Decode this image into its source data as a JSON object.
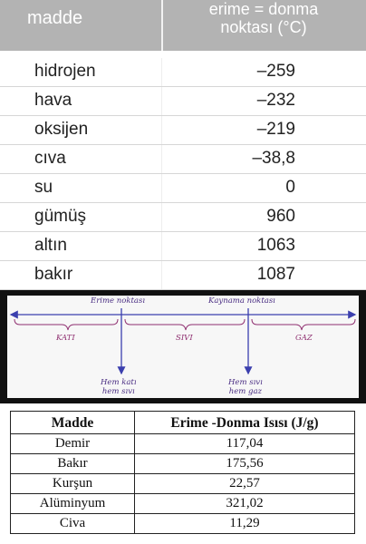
{
  "table1": {
    "header": {
      "col1": "madde",
      "col2": "erime = donma\nnoktası (°C)"
    },
    "rows": [
      {
        "name": "hidrojen",
        "value": "–259"
      },
      {
        "name": "hava",
        "value": "–232"
      },
      {
        "name": "oksijen",
        "value": "–219"
      },
      {
        "name": "cıva",
        "value": "–38,8"
      },
      {
        "name": "su",
        "value": "0"
      },
      {
        "name": "gümüş",
        "value": "960"
      },
      {
        "name": "altın",
        "value": "1063"
      },
      {
        "name": "bakır",
        "value": "1087"
      }
    ]
  },
  "diagram": {
    "point1": "Erime noktası",
    "point2": "Kaynama noktası",
    "phases": [
      "KATI",
      "SIVI",
      "GAZ"
    ],
    "below1": "Hem katı\nhem sıvı",
    "below2": "Hem sıvı\nhem gaz",
    "colors": {
      "line": "#3b3fae",
      "text": "#4a2e83",
      "phase": "#8f2f70"
    }
  },
  "table2": {
    "headers": [
      "Madde",
      "Erime -Donma Isısı (J/g)"
    ],
    "rows": [
      [
        "Demir",
        "117,04"
      ],
      [
        "Bakır",
        "175,56"
      ],
      [
        "Kurşun",
        "22,57"
      ],
      [
        "Alüminyum",
        "321,02"
      ],
      [
        "Civa",
        "11,29"
      ]
    ]
  }
}
